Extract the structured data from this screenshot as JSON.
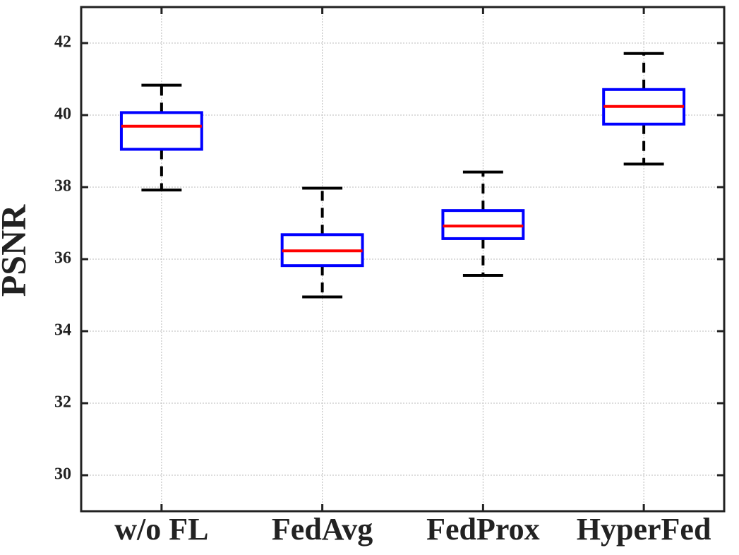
{
  "chart_data": {
    "type": "box",
    "ylabel": "PSNR",
    "categories": [
      "w/o FL",
      "FedAvg",
      "FedProx",
      "HyperFed"
    ],
    "min": [
      37.92,
      34.95,
      35.55,
      38.64
    ],
    "q1": [
      39.05,
      35.82,
      36.57,
      39.75
    ],
    "median": [
      39.69,
      36.23,
      36.92,
      40.24
    ],
    "q3": [
      40.07,
      36.68,
      37.35,
      40.71
    ],
    "max": [
      40.83,
      37.97,
      38.42,
      41.71
    ],
    "box_color": "#0000ff",
    "median_color": "#ff0000",
    "whisker_color": "#000000",
    "ylim": [
      29,
      43
    ],
    "yticks": [
      30,
      32,
      34,
      36,
      38,
      40,
      42
    ],
    "grid": true
  }
}
